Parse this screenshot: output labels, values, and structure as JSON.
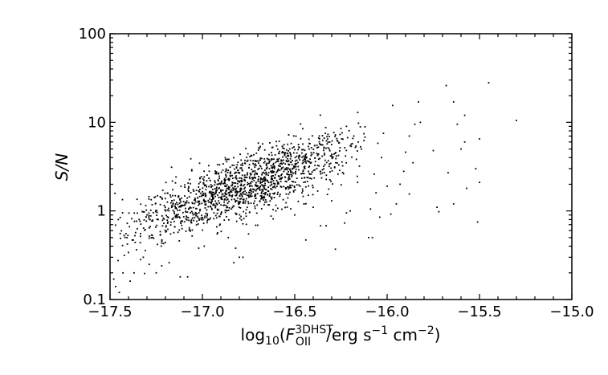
{
  "chart_data": {
    "type": "scatter",
    "title": "",
    "xlabel": {
      "prefix": "log",
      "log_base": "10",
      "open": "(",
      "symbol": "F",
      "superscript": "3DHST",
      "subscript": "OII",
      "unit_text": "/erg s",
      "exp1": "−1",
      "unit_text2": " cm",
      "exp2": "−2",
      "close": ")"
    },
    "ylabel": "S/N",
    "xlim": [
      -17.5,
      -15.0
    ],
    "ylim": [
      0.1,
      100
    ],
    "yscale": "log",
    "x_ticks": [
      -17.5,
      -17.0,
      -16.5,
      -16.0,
      -15.5,
      -15.0
    ],
    "x_tick_labels": [
      "−17.5",
      "−17.0",
      "−16.5",
      "−16.0",
      "−15.5",
      "−15.0"
    ],
    "y_ticks": [
      0.1,
      1,
      10,
      100
    ],
    "y_tick_labels": [
      "0.1",
      "1",
      "10",
      "100"
    ],
    "grid": false,
    "legend": "none",
    "marker_color": "#000000",
    "points": [
      [
        -15.45,
        28
      ],
      [
        -15.68,
        26
      ],
      [
        -15.64,
        17
      ],
      [
        -15.83,
        17
      ],
      [
        -15.97,
        15.5
      ],
      [
        -15.3,
        10.5
      ],
      [
        -15.58,
        12
      ],
      [
        -15.62,
        9.5
      ],
      [
        -15.5,
        6.5
      ],
      [
        -15.58,
        6
      ],
      [
        -15.6,
        5
      ],
      [
        -15.52,
        3
      ],
      [
        -15.5,
        2.1
      ],
      [
        -15.57,
        1.8
      ],
      [
        -15.64,
        1.2
      ],
      [
        -15.67,
        2.7
      ],
      [
        -15.73,
        1.1
      ],
      [
        -15.72,
        0.98
      ],
      [
        -15.51,
        0.75
      ],
      [
        -15.75,
        4.8
      ],
      [
        -15.82,
        10
      ],
      [
        -15.85,
        9.5
      ],
      [
        -15.88,
        7
      ],
      [
        -15.9,
        4.6
      ],
      [
        -15.86,
        3.5
      ],
      [
        -15.91,
        2.8
      ],
      [
        -15.93,
        2
      ],
      [
        -15.88,
        1.55
      ],
      [
        -15.95,
        1.2
      ],
      [
        -15.98,
        0.92
      ],
      [
        -16.0,
        1.9
      ],
      [
        -16.02,
        7.5
      ],
      [
        -16.05,
        5.8
      ],
      [
        -16.03,
        4
      ],
      [
        -16.07,
        2.6
      ],
      [
        -16.06,
        1.6
      ],
      [
        -16.09,
        1.05
      ],
      [
        -16.04,
        0.85
      ],
      [
        -16.1,
        0.5
      ],
      [
        -16.08,
        0.5
      ],
      [
        -16.12,
        6.8
      ],
      [
        -16.14,
        5
      ],
      [
        -16.15,
        3.2
      ],
      [
        -16.16,
        2.1
      ],
      [
        -16.2,
        1
      ],
      [
        -16.22,
        0.95
      ],
      [
        -16.23,
        0.73
      ],
      [
        -16.28,
        0.37
      ],
      [
        -16.3,
        1.3
      ],
      [
        -16.33,
        0.68
      ],
      [
        -16.36,
        0.68
      ],
      [
        -16.4,
        1.1
      ],
      [
        -16.44,
        0.47
      ],
      [
        -16.5,
        0.9
      ],
      [
        -16.45,
        1.2
      ],
      [
        -16.75,
        0.55
      ],
      [
        -16.78,
        0.3
      ],
      [
        -16.8,
        0.3
      ],
      [
        -16.82,
        0.38
      ],
      [
        -16.83,
        0.26
      ],
      [
        -16.86,
        0.5
      ],
      [
        -16.92,
        0.55
      ],
      [
        -16.99,
        0.4
      ],
      [
        -17.02,
        0.38
      ],
      [
        -17.08,
        0.18
      ],
      [
        -17.12,
        0.18
      ],
      [
        -17.18,
        0.26
      ],
      [
        -17.22,
        0.24
      ],
      [
        -17.25,
        0.2
      ],
      [
        -17.32,
        0.3
      ],
      [
        -17.37,
        0.2
      ],
      [
        -17.43,
        0.2
      ],
      [
        -17.45,
        0.12
      ],
      [
        -17.48,
        0.17
      ],
      [
        -17.47,
        0.14
      ],
      [
        -16.25,
        8.5
      ],
      [
        -16.22,
        9
      ],
      [
        -16.12,
        8.9
      ],
      [
        -16.18,
        7
      ],
      [
        -16.28,
        7.2
      ]
    ],
    "cloud": {
      "count": 1500,
      "x_min": -17.5,
      "x_max": -16.1,
      "x_mode": -16.75,
      "slope_log10_sn_per_dex": 0.77,
      "log10_sn_at_minus_17": 0.1,
      "scatter_dex": 0.17
    }
  }
}
